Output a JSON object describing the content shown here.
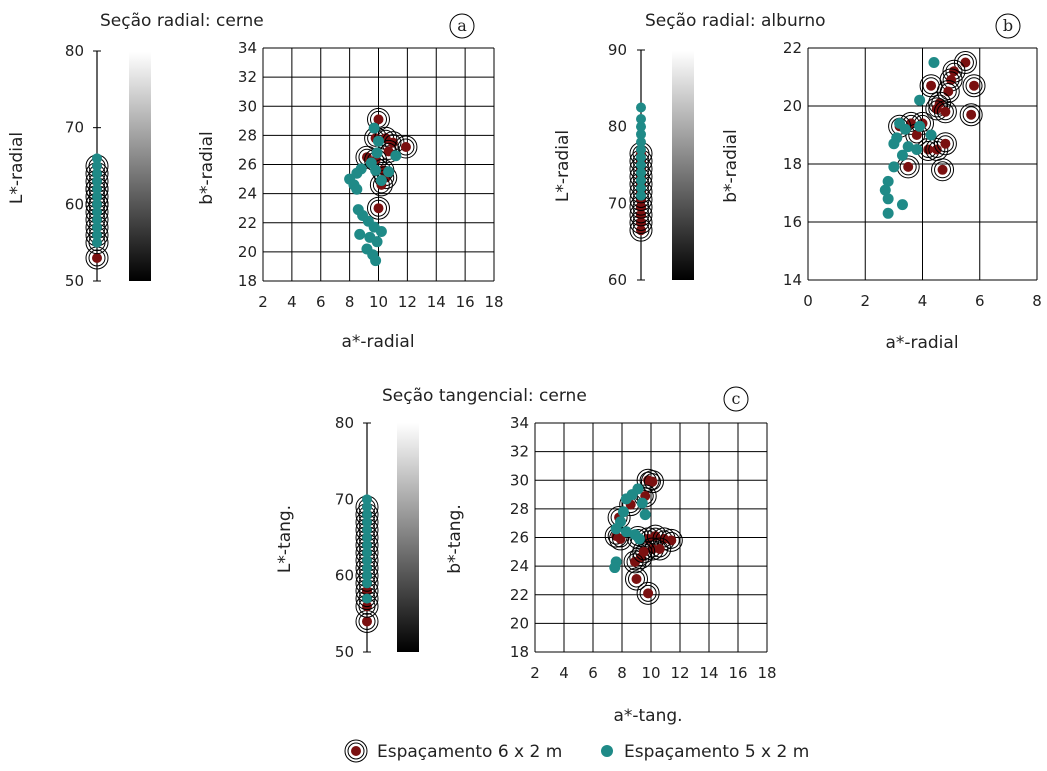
{
  "legend": {
    "entries": [
      {
        "label": "Espaçamento 6 x 2 m",
        "color": "#7a1010",
        "marker": "circled-dot"
      },
      {
        "label": "Espaçamento 5 x 2 m",
        "color": "#1f8a87",
        "marker": "filled-dot"
      }
    ]
  },
  "colors": {
    "red": "#7a1010",
    "teal": "#1f8a87",
    "grid": "#000000"
  },
  "chart_data": [
    {
      "type": "scatter",
      "panel": "a",
      "title": "Seção radial: cerne",
      "strip": {
        "ylabel": "L*-radial",
        "ylim": [
          50,
          80
        ],
        "yticks": [
          50,
          60,
          70,
          80
        ],
        "series": [
          {
            "name": "Espaçamento 6 x 2 m",
            "values": [
              53,
              55,
              56,
              57,
              58,
              59,
              60,
              60,
              60,
              61,
              62,
              62,
              63,
              64,
              65
            ]
          },
          {
            "name": "Espaçamento 5 x 2 m",
            "values": [
              55,
              56,
              57,
              58,
              59,
              60,
              61,
              62,
              63,
              64,
              65,
              66
            ]
          }
        ]
      },
      "colorbar_label": "b*-radial",
      "xlabel": "a*-radial",
      "ylabel": "",
      "xlim": [
        2,
        18
      ],
      "ylim": [
        18,
        34
      ],
      "xticks": [
        2,
        4,
        6,
        8,
        10,
        12,
        14,
        16,
        18
      ],
      "yticks": [
        18,
        20,
        22,
        24,
        26,
        28,
        30,
        32,
        34
      ],
      "series": [
        {
          "name": "Espaçamento 6 x 2 m",
          "points": [
            [
              10.0,
              29.1
            ],
            [
              9.8,
              27.8
            ],
            [
              10.5,
              27.8
            ],
            [
              11.0,
              27.5
            ],
            [
              10.7,
              26.9
            ],
            [
              11.9,
              27.2
            ],
            [
              9.2,
              26.5
            ],
            [
              9.8,
              26.3
            ],
            [
              10.3,
              25.6
            ],
            [
              10.5,
              25.1
            ],
            [
              10.2,
              24.6
            ],
            [
              10.0,
              23.0
            ]
          ]
        },
        {
          "name": "Espaçamento 5 x 2 m",
          "points": [
            [
              9.7,
              28.5
            ],
            [
              10.0,
              27.6
            ],
            [
              9.9,
              26.8
            ],
            [
              11.2,
              26.6
            ],
            [
              9.5,
              26.1
            ],
            [
              8.8,
              25.7
            ],
            [
              8.5,
              25.4
            ],
            [
              8.0,
              25.0
            ],
            [
              8.3,
              24.6
            ],
            [
              8.5,
              24.3
            ],
            [
              9.8,
              25.6
            ],
            [
              10.2,
              24.9
            ],
            [
              10.7,
              25.5
            ],
            [
              8.6,
              22.9
            ],
            [
              8.9,
              22.5
            ],
            [
              9.3,
              22.1
            ],
            [
              9.7,
              21.7
            ],
            [
              10.2,
              21.4
            ],
            [
              8.7,
              21.2
            ],
            [
              9.4,
              21.0
            ],
            [
              9.9,
              20.7
            ],
            [
              9.2,
              20.2
            ],
            [
              9.6,
              19.8
            ],
            [
              9.8,
              19.4
            ]
          ]
        }
      ]
    },
    {
      "type": "scatter",
      "panel": "b",
      "title": "Seção radial: alburno",
      "strip": {
        "ylabel": "L*-radial",
        "ylim": [
          60,
          90
        ],
        "yticks": [
          60,
          70,
          80,
          90
        ],
        "series": [
          {
            "name": "Espaçamento 6 x 2 m",
            "values": [
              66.5,
              67.5,
              68.5,
              69.5,
              70.5,
              71.5,
              72.5,
              73.5,
              74.5,
              75.5,
              76.5
            ]
          },
          {
            "name": "Espaçamento 5 x 2 m",
            "values": [
              71,
              72,
              73,
              74,
              75,
              76,
              77,
              78,
              79,
              80,
              81,
              82.5
            ]
          }
        ]
      },
      "colorbar_label": "b*-radial",
      "xlabel": "a*-radial",
      "ylabel": "",
      "xlim": [
        0,
        8
      ],
      "ylim": [
        14,
        22
      ],
      "xticks": [
        0,
        2,
        4,
        6,
        8
      ],
      "yticks": [
        14,
        16,
        18,
        20,
        22
      ],
      "series": [
        {
          "name": "Espaçamento 6 x 2 m",
          "points": [
            [
              5.5,
              21.5
            ],
            [
              5.1,
              21.2
            ],
            [
              5.0,
              20.9
            ],
            [
              4.3,
              20.7
            ],
            [
              5.8,
              20.7
            ],
            [
              4.9,
              20.5
            ],
            [
              4.6,
              20.1
            ],
            [
              4.5,
              19.9
            ],
            [
              4.8,
              19.8
            ],
            [
              5.7,
              19.7
            ],
            [
              4.0,
              19.4
            ],
            [
              3.6,
              19.4
            ],
            [
              4.2,
              18.5
            ],
            [
              4.5,
              18.5
            ],
            [
              4.8,
              18.7
            ],
            [
              3.5,
              17.9
            ],
            [
              4.7,
              17.8
            ],
            [
              3.8,
              19.0
            ],
            [
              3.2,
              19.3
            ]
          ]
        },
        {
          "name": "Espaçamento 5 x 2 m",
          "points": [
            [
              4.4,
              21.5
            ],
            [
              3.9,
              20.2
            ],
            [
              3.2,
              19.4
            ],
            [
              3.4,
              19.2
            ],
            [
              3.9,
              19.3
            ],
            [
              4.3,
              19.0
            ],
            [
              3.1,
              18.9
            ],
            [
              3.0,
              18.7
            ],
            [
              3.5,
              18.6
            ],
            [
              3.8,
              18.5
            ],
            [
              3.3,
              18.3
            ],
            [
              3.0,
              17.9
            ],
            [
              2.8,
              17.4
            ],
            [
              2.7,
              17.1
            ],
            [
              2.8,
              16.8
            ],
            [
              3.3,
              16.6
            ],
            [
              2.8,
              16.3
            ]
          ]
        }
      ]
    },
    {
      "type": "scatter",
      "panel": "c",
      "title": "Seção tangencial: cerne",
      "strip": {
        "ylabel": "L*-tang.",
        "ylim": [
          50,
          80
        ],
        "yticks": [
          50,
          60,
          70,
          80
        ],
        "series": [
          {
            "name": "Espaçamento 6 x 2 m",
            "values": [
              54,
              56,
              57,
              58,
              59,
              60,
              61,
              62,
              63,
              64,
              65,
              66,
              67,
              68,
              69
            ]
          },
          {
            "name": "Espaçamento 5 x 2 m",
            "values": [
              57,
              59,
              60,
              61,
              62,
              63,
              64,
              65,
              66,
              67,
              68,
              69,
              70
            ]
          }
        ]
      },
      "colorbar_label": "b*-tang.",
      "xlabel": "a*-tang.",
      "ylabel": "",
      "xlim": [
        2,
        18
      ],
      "ylim": [
        18,
        34
      ],
      "xticks": [
        2,
        4,
        6,
        8,
        10,
        12,
        14,
        16,
        18
      ],
      "yticks": [
        18,
        20,
        22,
        24,
        26,
        28,
        30,
        32,
        34
      ],
      "series": [
        {
          "name": "Espaçamento 6 x 2 m",
          "points": [
            [
              9.8,
              30.0
            ],
            [
              10.1,
              29.9
            ],
            [
              9.6,
              28.9
            ],
            [
              8.6,
              28.3
            ],
            [
              7.8,
              27.4
            ],
            [
              7.6,
              26.1
            ],
            [
              7.9,
              25.9
            ],
            [
              9.1,
              26.0
            ],
            [
              9.8,
              25.9
            ],
            [
              10.3,
              26.1
            ],
            [
              10.9,
              25.9
            ],
            [
              11.4,
              25.8
            ],
            [
              10.1,
              25.2
            ],
            [
              10.6,
              25.2
            ],
            [
              9.3,
              24.6
            ],
            [
              8.9,
              24.3
            ],
            [
              9.5,
              25.0
            ],
            [
              9.0,
              23.1
            ],
            [
              9.8,
              22.1
            ]
          ]
        },
        {
          "name": "Espaçamento 5 x 2 m",
          "points": [
            [
              9.1,
              29.4
            ],
            [
              8.7,
              29.0
            ],
            [
              8.3,
              28.7
            ],
            [
              9.4,
              28.4
            ],
            [
              8.1,
              27.8
            ],
            [
              9.6,
              27.6
            ],
            [
              7.9,
              27.1
            ],
            [
              7.6,
              26.6
            ],
            [
              8.3,
              26.4
            ],
            [
              8.9,
              26.2
            ],
            [
              9.2,
              25.9
            ],
            [
              7.6,
              24.3
            ],
            [
              7.5,
              23.9
            ]
          ]
        }
      ]
    }
  ]
}
